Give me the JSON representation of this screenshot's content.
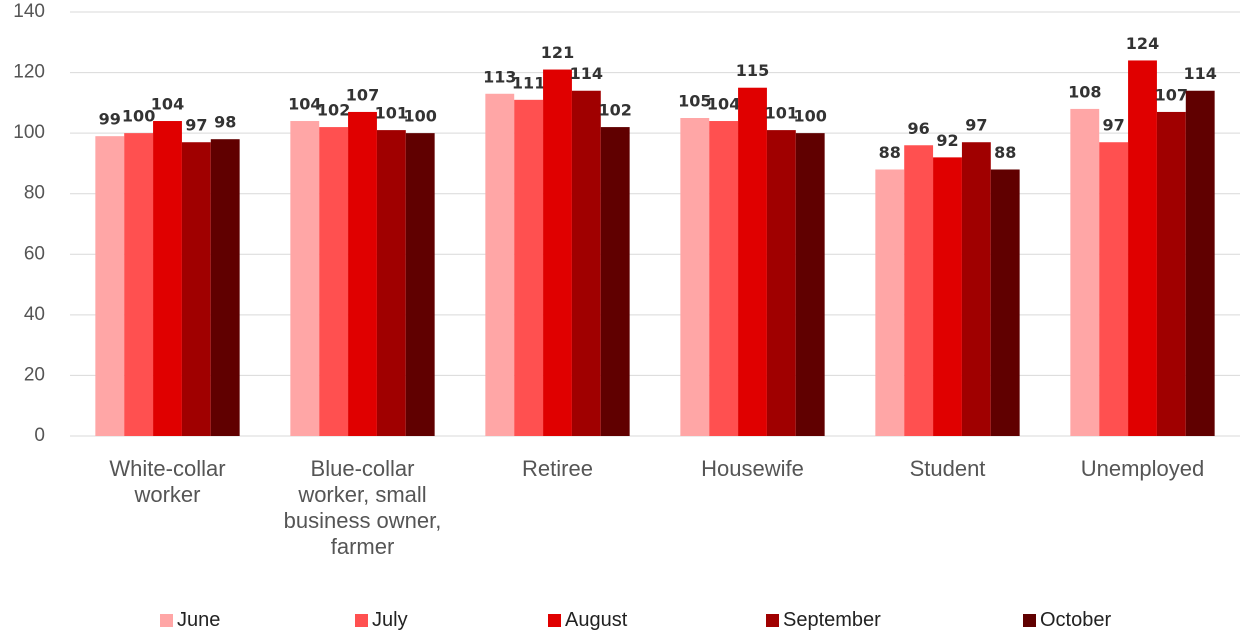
{
  "chart_data": {
    "type": "bar",
    "categories": [
      "White-collar worker",
      "Blue-collar worker, small business owner, farmer",
      "Retiree",
      "Housewife",
      "Student",
      "Unemployed"
    ],
    "series": [
      {
        "name": "June",
        "color": "#ffa6a6",
        "values": [
          99,
          104,
          113,
          105,
          88,
          108
        ]
      },
      {
        "name": "July",
        "color": "#ff5050",
        "values": [
          100,
          102,
          111,
          104,
          96,
          97
        ]
      },
      {
        "name": "August",
        "color": "#e00000",
        "values": [
          104,
          107,
          121,
          115,
          92,
          124
        ]
      },
      {
        "name": "September",
        "color": "#a00000",
        "values": [
          97,
          101,
          114,
          101,
          97,
          107
        ]
      },
      {
        "name": "October",
        "color": "#600000",
        "values": [
          98,
          100,
          102,
          100,
          88,
          114
        ]
      }
    ],
    "ylim": [
      0,
      140
    ],
    "yticks": [
      0,
      20,
      40,
      60,
      80,
      100,
      120,
      140
    ],
    "grid": true,
    "legend": "bottom"
  }
}
